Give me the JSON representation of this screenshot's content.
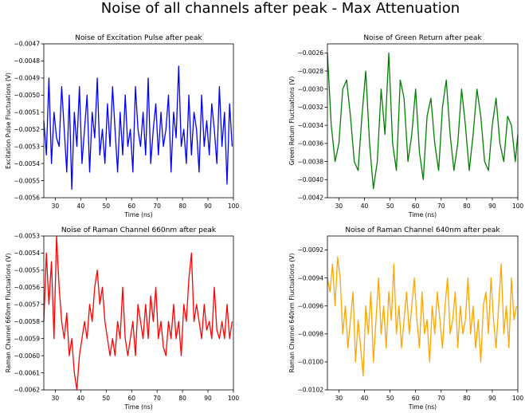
{
  "figure": {
    "suptitle": "Noise of all channels after peak - Max Attenuation"
  },
  "chart_data": [
    {
      "type": "line",
      "title": "Noise of Excitation Pulse after peak",
      "xlabel": "Time (ns)",
      "ylabel": "Excitation Pulse Fluctuations (V)",
      "xlim": [
        25.5,
        100
      ],
      "ylim": [
        -0.0056,
        -0.0047
      ],
      "xticks": [
        30,
        40,
        50,
        60,
        70,
        80,
        90,
        100
      ],
      "xtick_labels": [
        "30",
        "40",
        "50",
        "60",
        "70",
        "80",
        "90",
        "100"
      ],
      "yticks": [
        -0.0056,
        -0.0055,
        -0.0054,
        -0.0053,
        -0.0052,
        -0.0051,
        -0.005,
        -0.0049,
        -0.0048,
        -0.0047
      ],
      "ytick_labels": [
        "−0.0056",
        "−0.0055",
        "−0.0054",
        "−0.0053",
        "−0.0052",
        "−0.0051",
        "−0.0050",
        "−0.0049",
        "−0.0048",
        "−0.0047"
      ],
      "color": "#0000ff",
      "series": [
        {
          "x": [
            25.5,
            26.5,
            27.5,
            28.5,
            29.5,
            30.5,
            31.5,
            32.5,
            33.5,
            34.5,
            35.5,
            36.5,
            37.5,
            38.5,
            39.5,
            40.5,
            41.5,
            42.5,
            43.5,
            44.5,
            45.5,
            46.5,
            47.5,
            48.5,
            49.5,
            50.5,
            51.5,
            52.5,
            53.5,
            54.5,
            55.5,
            56.5,
            57.5,
            58.5,
            59.5,
            60.5,
            61.5,
            62.5,
            63.5,
            64.5,
            65.5,
            66.5,
            67.5,
            68.5,
            69.5,
            70.5,
            71.5,
            72.5,
            73.5,
            74.5,
            75.5,
            76.5,
            77.5,
            78.5,
            79.5,
            80.5,
            81.5,
            82.5,
            83.5,
            84.5,
            85.5,
            86.5,
            87.5,
            88.5,
            89.5,
            90.5,
            91.5,
            92.5,
            93.5,
            94.5,
            95.5,
            96.5,
            97.5,
            98.5,
            99.5
          ],
          "y": [
            -0.00515,
            -0.00535,
            -0.0049,
            -0.0054,
            -0.0051,
            -0.00525,
            -0.0053,
            -0.00495,
            -0.0052,
            -0.00545,
            -0.005,
            -0.00555,
            -0.0051,
            -0.0053,
            -0.00495,
            -0.0054,
            -0.0052,
            -0.005,
            -0.00545,
            -0.0051,
            -0.00525,
            -0.0049,
            -0.00535,
            -0.0052,
            -0.0054,
            -0.00505,
            -0.0053,
            -0.00495,
            -0.0052,
            -0.00545,
            -0.0051,
            -0.00535,
            -0.005,
            -0.0053,
            -0.0052,
            -0.00545,
            -0.00495,
            -0.0052,
            -0.0053,
            -0.0051,
            -0.00535,
            -0.0049,
            -0.0054,
            -0.0052,
            -0.00505,
            -0.00535,
            -0.0051,
            -0.0053,
            -0.0052,
            -0.005,
            -0.00545,
            -0.0051,
            -0.00525,
            -0.00483,
            -0.0053,
            -0.0052,
            -0.0054,
            -0.005,
            -0.00535,
            -0.0051,
            -0.0052,
            -0.00545,
            -0.005,
            -0.0053,
            -0.00515,
            -0.00535,
            -0.00505,
            -0.0052,
            -0.0054,
            -0.00495,
            -0.0053,
            -0.0051,
            -0.00552,
            -0.00505,
            -0.0053
          ]
        }
      ]
    },
    {
      "type": "line",
      "title": "Noise of Green Return after peak",
      "xlabel": "Time (ns)",
      "ylabel": "Green Return Fluctuations (V)",
      "xlim": [
        25.5,
        100
      ],
      "ylim": [
        -0.0042,
        -0.0025
      ],
      "xticks": [
        30,
        40,
        50,
        60,
        70,
        80,
        90,
        100
      ],
      "xtick_labels": [
        "30",
        "40",
        "50",
        "60",
        "70",
        "80",
        "90",
        "100"
      ],
      "yticks": [
        -0.0042,
        -0.004,
        -0.0038,
        -0.0036,
        -0.0034,
        -0.0032,
        -0.003,
        -0.0028,
        -0.0026
      ],
      "ytick_labels": [
        "−0.0042",
        "−0.0040",
        "−0.0038",
        "−0.0036",
        "−0.0034",
        "−0.0032",
        "−0.0030",
        "−0.0028",
        "−0.0026"
      ],
      "color": "#008000",
      "series": [
        {
          "x": [
            25.5,
            27,
            28.5,
            30,
            31.5,
            33,
            34.5,
            36,
            37.5,
            39,
            40.5,
            42,
            43.5,
            45,
            46.5,
            48,
            49.5,
            51,
            52.5,
            54,
            55.5,
            57,
            58.5,
            60,
            61.5,
            63,
            64.5,
            66,
            67.5,
            69,
            70.5,
            72,
            73.5,
            75,
            76.5,
            78,
            79.5,
            81,
            82.5,
            84,
            85.5,
            87,
            88.5,
            90,
            91.5,
            93,
            94.5,
            96,
            97.5,
            99,
            100
          ],
          "y": [
            -0.0026,
            -0.0034,
            -0.0038,
            -0.0036,
            -0.003,
            -0.0029,
            -0.0033,
            -0.0038,
            -0.0039,
            -0.0033,
            -0.0028,
            -0.0036,
            -0.0041,
            -0.0038,
            -0.003,
            -0.0035,
            -0.0026,
            -0.0036,
            -0.0039,
            -0.0029,
            -0.0031,
            -0.0038,
            -0.0035,
            -0.003,
            -0.0037,
            -0.004,
            -0.0033,
            -0.0031,
            -0.0036,
            -0.0039,
            -0.0032,
            -0.0029,
            -0.0035,
            -0.0039,
            -0.0036,
            -0.003,
            -0.0034,
            -0.0039,
            -0.0035,
            -0.003,
            -0.0033,
            -0.0038,
            -0.0039,
            -0.0034,
            -0.0031,
            -0.0036,
            -0.0038,
            -0.0033,
            -0.0034,
            -0.0038,
            -0.0035
          ]
        }
      ]
    },
    {
      "type": "line",
      "title": "Noise of Raman Channel 660nm after peak",
      "xlabel": "Time (ns)",
      "ylabel": "Raman Channel 660nm Fluctuations (V)",
      "xlim": [
        25.5,
        100
      ],
      "ylim": [
        -0.0062,
        -0.0053
      ],
      "xticks": [
        30,
        40,
        50,
        60,
        70,
        80,
        90,
        100
      ],
      "xtick_labels": [
        "30",
        "40",
        "50",
        "60",
        "70",
        "80",
        "90",
        "100"
      ],
      "yticks": [
        -0.0062,
        -0.0061,
        -0.006,
        -0.0059,
        -0.0058,
        -0.0057,
        -0.0056,
        -0.0055,
        -0.0054,
        -0.0053
      ],
      "ytick_labels": [
        "−0.0062",
        "−0.0061",
        "−0.0060",
        "−0.0059",
        "−0.0058",
        "−0.0057",
        "−0.0056",
        "−0.0055",
        "−0.0054",
        "−0.0053"
      ],
      "color": "#ff0000",
      "series": [
        {
          "x": [
            25.5,
            26.5,
            27.5,
            28.5,
            29.5,
            30.5,
            31.5,
            32.5,
            33.5,
            34.5,
            35.5,
            36.5,
            37.5,
            38.5,
            39.5,
            40.5,
            41.5,
            42.5,
            43.5,
            44.5,
            45.5,
            46.5,
            47.5,
            48.5,
            49.5,
            50.5,
            51.5,
            52.5,
            53.5,
            54.5,
            55.5,
            56.5,
            57.5,
            58.5,
            59.5,
            60.5,
            61.5,
            62.5,
            63.5,
            64.5,
            65.5,
            66.5,
            67.5,
            68.5,
            69.5,
            70.5,
            71.5,
            72.5,
            73.5,
            74.5,
            75.5,
            76.5,
            77.5,
            78.5,
            79.5,
            80.5,
            81.5,
            82.5,
            83.5,
            84.5,
            85.5,
            86.5,
            87.5,
            88.5,
            89.5,
            90.5,
            91.5,
            92.5,
            93.5,
            94.5,
            95.5,
            96.5,
            97.5,
            98.5,
            99.5
          ],
          "y": [
            -0.0058,
            -0.0054,
            -0.0057,
            -0.00545,
            -0.0059,
            -0.0053,
            -0.0056,
            -0.0058,
            -0.0059,
            -0.00575,
            -0.006,
            -0.0059,
            -0.0061,
            -0.0062,
            -0.006,
            -0.0059,
            -0.0058,
            -0.0059,
            -0.0057,
            -0.0058,
            -0.0056,
            -0.0055,
            -0.0057,
            -0.0056,
            -0.0058,
            -0.0059,
            -0.006,
            -0.0059,
            -0.006,
            -0.0058,
            -0.0059,
            -0.0056,
            -0.0059,
            -0.006,
            -0.0059,
            -0.0058,
            -0.006,
            -0.0057,
            -0.0058,
            -0.0059,
            -0.0057,
            -0.0059,
            -0.00565,
            -0.0058,
            -0.0056,
            -0.0059,
            -0.0058,
            -0.00595,
            -0.006,
            -0.0058,
            -0.0059,
            -0.0057,
            -0.0059,
            -0.0058,
            -0.006,
            -0.0057,
            -0.0058,
            -0.00555,
            -0.0054,
            -0.0058,
            -0.0057,
            -0.0058,
            -0.0059,
            -0.0057,
            -0.00585,
            -0.0058,
            -0.0059,
            -0.0056,
            -0.00585,
            -0.0059,
            -0.0058,
            -0.0059,
            -0.0057,
            -0.0059,
            -0.0058
          ]
        }
      ]
    },
    {
      "type": "line",
      "title": "Noise of Raman Channel 640nm after peak",
      "xlabel": "Time (ns)",
      "ylabel": "Raman Channel 640nm Fluctuations (V)",
      "xlim": [
        25.5,
        100
      ],
      "ylim": [
        -0.0102,
        -0.0091
      ],
      "xticks": [
        30,
        40,
        50,
        60,
        70,
        80,
        90,
        100
      ],
      "xtick_labels": [
        "30",
        "40",
        "50",
        "60",
        "70",
        "80",
        "90",
        "100"
      ],
      "yticks": [
        -0.0102,
        -0.01,
        -0.0098,
        -0.0096,
        -0.0094,
        -0.0092
      ],
      "ytick_labels": [
        "−0.0102",
        "−0.0100",
        "−0.0098",
        "−0.0096",
        "−0.0094",
        "−0.0092"
      ],
      "color": "#ffa500",
      "series": [
        {
          "x": [
            25.5,
            26.5,
            27.5,
            28.5,
            29.5,
            30.5,
            31.5,
            32.5,
            33.5,
            34.5,
            35.5,
            36.5,
            37.5,
            38.5,
            39.5,
            40.5,
            41.5,
            42.5,
            43.5,
            44.5,
            45.5,
            46.5,
            47.5,
            48.5,
            49.5,
            50.5,
            51.5,
            52.5,
            53.5,
            54.5,
            55.5,
            56.5,
            57.5,
            58.5,
            59.5,
            60.5,
            61.5,
            62.5,
            63.5,
            64.5,
            65.5,
            66.5,
            67.5,
            68.5,
            69.5,
            70.5,
            71.5,
            72.5,
            73.5,
            74.5,
            75.5,
            76.5,
            77.5,
            78.5,
            79.5,
            80.5,
            81.5,
            82.5,
            83.5,
            84.5,
            85.5,
            86.5,
            87.5,
            88.5,
            89.5,
            90.5,
            91.5,
            92.5,
            93.5,
            94.5,
            95.5,
            96.5,
            97.5,
            98.5,
            99.5
          ],
          "y": [
            -0.0094,
            -0.0095,
            -0.0093,
            -0.0096,
            -0.00925,
            -0.0094,
            -0.0098,
            -0.0096,
            -0.0099,
            -0.0097,
            -0.0095,
            -0.01,
            -0.0097,
            -0.0099,
            -0.0101,
            -0.0096,
            -0.0098,
            -0.0095,
            -0.01,
            -0.0097,
            -0.0094,
            -0.0098,
            -0.0096,
            -0.0099,
            -0.0095,
            -0.0097,
            -0.0093,
            -0.0098,
            -0.0096,
            -0.0099,
            -0.0097,
            -0.0095,
            -0.0098,
            -0.0096,
            -0.0094,
            -0.0097,
            -0.0099,
            -0.0095,
            -0.0098,
            -0.0097,
            -0.01,
            -0.0096,
            -0.0098,
            -0.0095,
            -0.0097,
            -0.0099,
            -0.0096,
            -0.0094,
            -0.0098,
            -0.0097,
            -0.0095,
            -0.0099,
            -0.0096,
            -0.0098,
            -0.0097,
            -0.0094,
            -0.0098,
            -0.0096,
            -0.0099,
            -0.0097,
            -0.01,
            -0.0096,
            -0.0095,
            -0.0098,
            -0.0094,
            -0.0097,
            -0.0099,
            -0.0096,
            -0.0093,
            -0.0098,
            -0.0096,
            -0.0099,
            -0.0094,
            -0.0097,
            -0.0096
          ]
        }
      ]
    }
  ]
}
